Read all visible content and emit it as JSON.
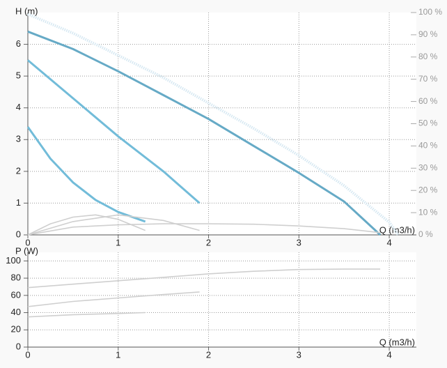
{
  "chart_data": [
    {
      "type": "line",
      "y_label": "H (m)",
      "x_label": "Q (m3/h)",
      "xlim": [
        0,
        4.3
      ],
      "xticks": [
        0,
        1,
        2,
        3,
        4
      ],
      "ylim": [
        0,
        7
      ],
      "yticks": [
        0,
        1,
        2,
        3,
        4,
        5,
        6
      ],
      "y2lim": [
        0,
        100
      ],
      "y2ticks": [
        {
          "value": 0,
          "label": "0 %"
        },
        {
          "value": 10,
          "label": "10 %"
        },
        {
          "value": 20,
          "label": "20 %"
        },
        {
          "value": 30,
          "label": "30 %"
        },
        {
          "value": 40,
          "label": "40 %"
        },
        {
          "value": 50,
          "label": "50 %"
        },
        {
          "value": 60,
          "label": "60 %"
        },
        {
          "value": 70,
          "label": "70 %"
        },
        {
          "value": 80,
          "label": "80 %"
        },
        {
          "value": 90,
          "label": "90 %"
        },
        {
          "value": 100,
          "label": "100 %"
        }
      ],
      "grid": true,
      "series": [
        {
          "color": "#d6e8f2",
          "style": "dotted",
          "x": [
            0,
            0.5,
            1,
            1.5,
            2,
            2.5,
            3,
            3.5,
            4,
            4.1
          ],
          "values": [
            6.95,
            6.35,
            5.65,
            4.95,
            4.15,
            3.35,
            2.5,
            1.55,
            0.4,
            0
          ]
        },
        {
          "color": "#66aac6",
          "x": [
            0,
            0.5,
            1,
            1.5,
            2,
            2.5,
            3,
            3.5,
            3.9
          ],
          "values": [
            6.4,
            5.85,
            5.15,
            4.4,
            3.65,
            2.8,
            1.95,
            1.05,
            0
          ]
        },
        {
          "color": "#72bcd9",
          "x": [
            0,
            0.5,
            1,
            1.5,
            1.9
          ],
          "values": [
            5.5,
            4.3,
            3.1,
            2.0,
            1.0
          ]
        },
        {
          "color": "#72bcd9",
          "x": [
            0,
            0.25,
            0.5,
            0.75,
            1,
            1.3
          ],
          "values": [
            3.4,
            2.4,
            1.65,
            1.1,
            0.72,
            0.42
          ]
        },
        {
          "color": "#cfcfcf",
          "axis": "y2",
          "x": [
            0,
            0.25,
            0.5,
            0.75,
            1,
            1.3
          ],
          "values": [
            0,
            5,
            8,
            9,
            7,
            2
          ]
        },
        {
          "color": "#cfcfcf",
          "axis": "y2",
          "x": [
            0,
            0.5,
            1,
            1.5,
            1.9
          ],
          "values": [
            0,
            6,
            9,
            6.5,
            2
          ]
        },
        {
          "color": "#cfcfcf",
          "axis": "y2",
          "x": [
            0,
            0.5,
            1,
            1.5,
            2,
            2.5,
            3,
            3.5,
            3.9
          ],
          "values": [
            0,
            3.5,
            4.5,
            5,
            5,
            4.8,
            4,
            2.8,
            1
          ]
        }
      ]
    },
    {
      "type": "line",
      "y_label": "P (W)",
      "x_label": "Q (m3/h)",
      "xlim": [
        0,
        4.3
      ],
      "xticks": [
        0,
        1,
        2,
        3,
        4
      ],
      "ylim": [
        0,
        110
      ],
      "yticks": [
        0,
        20,
        40,
        60,
        80,
        100
      ],
      "grid": true,
      "series": [
        {
          "color": "#cfcfcf",
          "x": [
            0,
            0.5,
            1,
            1.5,
            2,
            2.5,
            3,
            3.5,
            3.9
          ],
          "values": [
            69,
            73,
            77,
            81,
            85,
            88,
            90,
            90.5,
            90.5
          ]
        },
        {
          "color": "#cfcfcf",
          "x": [
            0,
            0.5,
            1,
            1.5,
            1.9
          ],
          "values": [
            47,
            53,
            57,
            61,
            64
          ]
        },
        {
          "color": "#cfcfcf",
          "x": [
            0,
            0.5,
            1,
            1.3
          ],
          "values": [
            35,
            37.5,
            39,
            40
          ]
        }
      ]
    }
  ]
}
